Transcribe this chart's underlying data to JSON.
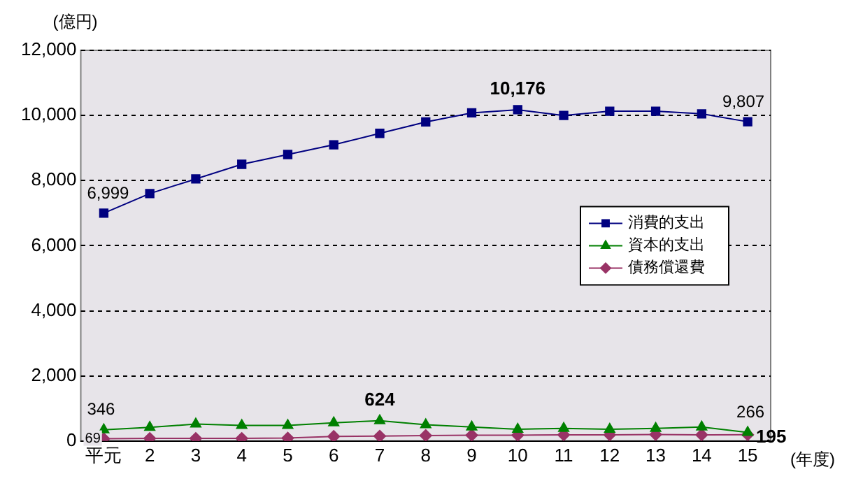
{
  "chart_data": {
    "type": "line",
    "ylabel": "(億円)",
    "xlabel": "(年度)",
    "categories": [
      "平元",
      "2",
      "3",
      "4",
      "5",
      "6",
      "7",
      "8",
      "9",
      "10",
      "11",
      "12",
      "13",
      "14",
      "15"
    ],
    "series": [
      {
        "name": "消費的支出",
        "color": "#000080",
        "marker": "square",
        "values": [
          6999,
          7600,
          8050,
          8500,
          8800,
          9100,
          9450,
          9800,
          10080,
          10176,
          10000,
          10130,
          10130,
          10050,
          9807
        ],
        "value_labels": [
          "6,999",
          null,
          null,
          null,
          null,
          null,
          null,
          null,
          null,
          "10,176",
          null,
          null,
          null,
          null,
          "9,807"
        ]
      },
      {
        "name": "資本的支出",
        "color": "#008000",
        "marker": "triangle",
        "values": [
          346,
          420,
          520,
          480,
          480,
          560,
          624,
          500,
          430,
          360,
          390,
          360,
          390,
          430,
          266
        ],
        "value_labels": [
          "346",
          null,
          null,
          null,
          null,
          null,
          "624",
          null,
          null,
          null,
          null,
          null,
          null,
          null,
          "266"
        ]
      },
      {
        "name": "債務償還費",
        "color": "#993366",
        "marker": "diamond",
        "values": [
          69,
          80,
          80,
          80,
          90,
          140,
          150,
          170,
          180,
          180,
          190,
          190,
          200,
          190,
          195
        ],
        "value_labels": [
          "69",
          null,
          null,
          null,
          null,
          null,
          null,
          null,
          null,
          null,
          null,
          null,
          null,
          null,
          "195"
        ]
      }
    ],
    "ylim": [
      0,
      12000
    ],
    "yticks": [
      0,
      {
        "value": 2000,
        "label": "2,000"
      },
      {
        "value": 4000,
        "label": "4,000"
      },
      {
        "value": 6000,
        "label": "6,000"
      },
      {
        "value": 8000,
        "label": "8,000"
      },
      {
        "value": 10000,
        "label": "10,000"
      },
      {
        "value": 12000,
        "label": "12,000"
      }
    ],
    "grid": "y",
    "legend": "right",
    "line_style": "solid"
  }
}
